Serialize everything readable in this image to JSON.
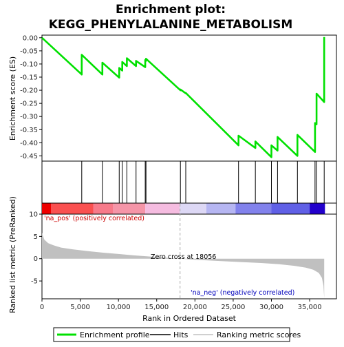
{
  "chart_data": {
    "type": "line",
    "title_line1": "Enrichment plot:",
    "title_line2": "KEGG_PHENYLALANINE_METABOLISM",
    "es_ylabel": "Enrichment score (ES)",
    "rank_ylabel": "Ranked list metric (PreRanked)",
    "xlabel": "Rank in Ordered Dataset",
    "x_ticks": [
      0,
      5000,
      10000,
      15000,
      20000,
      25000,
      30000,
      35000
    ],
    "x_tick_labels": [
      "0",
      "5,000",
      "10,000",
      "15,000",
      "20,000",
      "25,000",
      "30,000",
      "35,000"
    ],
    "xlim": [
      0,
      38500
    ],
    "es_ylim": [
      -0.47,
      0.01
    ],
    "es_ticks": [
      0.0,
      -0.05,
      -0.1,
      -0.15,
      -0.2,
      -0.25,
      -0.3,
      -0.35,
      -0.4,
      -0.45
    ],
    "es_tick_labels": [
      "0.00",
      "-0.05",
      "-0.10",
      "-0.15",
      "-0.20",
      "-0.25",
      "-0.30",
      "-0.35",
      "-0.40",
      "-0.45"
    ],
    "rank_ylim": [
      -9,
      10
    ],
    "rank_ticks": [
      10,
      5,
      0,
      -5
    ],
    "rank_tick_labels": [
      "10",
      "5",
      "0",
      "-5"
    ],
    "n_genes": 36900,
    "hits": [
      5200,
      7900,
      10100,
      10500,
      11100,
      12300,
      13500,
      13600,
      18100,
      18800,
      25700,
      27900,
      30000,
      30800,
      33400,
      35700,
      35900,
      36900
    ],
    "enrichment_profile": [
      [
        0,
        0.0
      ],
      [
        5200,
        -0.14
      ],
      [
        5200,
        -0.065
      ],
      [
        7900,
        -0.14
      ],
      [
        7900,
        -0.095
      ],
      [
        10100,
        -0.152
      ],
      [
        10100,
        -0.115
      ],
      [
        10500,
        -0.125
      ],
      [
        10500,
        -0.092
      ],
      [
        11100,
        -0.108
      ],
      [
        11100,
        -0.078
      ],
      [
        12300,
        -0.108
      ],
      [
        12300,
        -0.088
      ],
      [
        13500,
        -0.112
      ],
      [
        13500,
        -0.085
      ],
      [
        13600,
        -0.088
      ],
      [
        13600,
        -0.08
      ],
      [
        18100,
        -0.2
      ],
      [
        18100,
        -0.197
      ],
      [
        18800,
        -0.212
      ],
      [
        18800,
        -0.21
      ],
      [
        25700,
        -0.41
      ],
      [
        25700,
        -0.373
      ],
      [
        27900,
        -0.42
      ],
      [
        27900,
        -0.395
      ],
      [
        30000,
        -0.455
      ],
      [
        30000,
        -0.41
      ],
      [
        30800,
        -0.43
      ],
      [
        30800,
        -0.378
      ],
      [
        33400,
        -0.45
      ],
      [
        33400,
        -0.37
      ],
      [
        35700,
        -0.435
      ],
      [
        35700,
        -0.325
      ],
      [
        35900,
        -0.33
      ],
      [
        35900,
        -0.213
      ],
      [
        36900,
        -0.245
      ],
      [
        36900,
        0.003
      ]
    ],
    "ranking_metric": [
      [
        0,
        5.8
      ],
      [
        300,
        4.3
      ],
      [
        800,
        3.5
      ],
      [
        1500,
        3.0
      ],
      [
        2500,
        2.5
      ],
      [
        4000,
        2.1
      ],
      [
        6000,
        1.7
      ],
      [
        8000,
        1.35
      ],
      [
        10000,
        1.05
      ],
      [
        12000,
        0.75
      ],
      [
        14000,
        0.5
      ],
      [
        16000,
        0.25
      ],
      [
        18056,
        0.0
      ],
      [
        20000,
        -0.22
      ],
      [
        23000,
        -0.5
      ],
      [
        26000,
        -0.75
      ],
      [
        29000,
        -1.0
      ],
      [
        31000,
        -1.25
      ],
      [
        33000,
        -1.6
      ],
      [
        34500,
        -2.0
      ],
      [
        35500,
        -2.5
      ],
      [
        36200,
        -3.2
      ],
      [
        36600,
        -4.3
      ],
      [
        36800,
        -6.0
      ],
      [
        36900,
        -8.8
      ]
    ],
    "zero_cross_label": "Zero cross at 18056",
    "zero_cross_x": 18056,
    "pos_label": "'na_pos' (positively correlated)",
    "neg_label": "'na_neg' (negatively correlated)",
    "colors": {
      "profile": "#00e000",
      "hits": "#000000",
      "metric_fill": "#c0c0c0",
      "pos_label": "#cc0000",
      "neg_label": "#0000bb",
      "zero_line": "#aaaaaa"
    },
    "heat_bands": [
      {
        "x0": 0,
        "x1": 1200,
        "color": "#ee0000"
      },
      {
        "x0": 1200,
        "x1": 6700,
        "color": "#fa5050"
      },
      {
        "x0": 6700,
        "x1": 9300,
        "color": "#f77a8a"
      },
      {
        "x0": 9300,
        "x1": 13500,
        "color": "#f595a8"
      },
      {
        "x0": 13500,
        "x1": 18000,
        "color": "#f5bce0"
      },
      {
        "x0": 18000,
        "x1": 21500,
        "color": "#ddd8f5"
      },
      {
        "x0": 21500,
        "x1": 25300,
        "color": "#b6b6f2"
      },
      {
        "x0": 25300,
        "x1": 30000,
        "color": "#8282ec"
      },
      {
        "x0": 30000,
        "x1": 35000,
        "color": "#6060e6"
      },
      {
        "x0": 35000,
        "x1": 37000,
        "color": "#2200cc"
      }
    ],
    "legend": {
      "profile": "Enrichment profile",
      "hits": "Hits",
      "metric": "Ranking metric scores"
    }
  }
}
